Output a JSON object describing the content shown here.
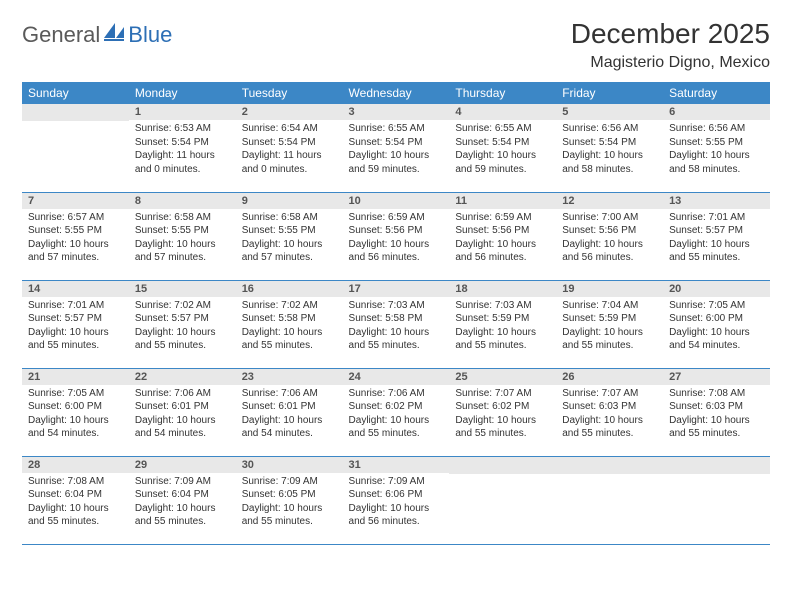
{
  "logo": {
    "part1": "General",
    "part2": "Blue"
  },
  "title": "December 2025",
  "location": "Magisterio Digno, Mexico",
  "header_bg": "#3c87c6",
  "header_fg": "#ffffff",
  "daynum_bg": "#e8e8e8",
  "row_divider": "#3c87c6",
  "weekdays": [
    "Sunday",
    "Monday",
    "Tuesday",
    "Wednesday",
    "Thursday",
    "Friday",
    "Saturday"
  ],
  "weeks": [
    [
      null,
      {
        "n": "1",
        "sr": "Sunrise: 6:53 AM",
        "ss": "Sunset: 5:54 PM",
        "d1": "Daylight: 11 hours",
        "d2": "and 0 minutes."
      },
      {
        "n": "2",
        "sr": "Sunrise: 6:54 AM",
        "ss": "Sunset: 5:54 PM",
        "d1": "Daylight: 11 hours",
        "d2": "and 0 minutes."
      },
      {
        "n": "3",
        "sr": "Sunrise: 6:55 AM",
        "ss": "Sunset: 5:54 PM",
        "d1": "Daylight: 10 hours",
        "d2": "and 59 minutes."
      },
      {
        "n": "4",
        "sr": "Sunrise: 6:55 AM",
        "ss": "Sunset: 5:54 PM",
        "d1": "Daylight: 10 hours",
        "d2": "and 59 minutes."
      },
      {
        "n": "5",
        "sr": "Sunrise: 6:56 AM",
        "ss": "Sunset: 5:54 PM",
        "d1": "Daylight: 10 hours",
        "d2": "and 58 minutes."
      },
      {
        "n": "6",
        "sr": "Sunrise: 6:56 AM",
        "ss": "Sunset: 5:55 PM",
        "d1": "Daylight: 10 hours",
        "d2": "and 58 minutes."
      }
    ],
    [
      {
        "n": "7",
        "sr": "Sunrise: 6:57 AM",
        "ss": "Sunset: 5:55 PM",
        "d1": "Daylight: 10 hours",
        "d2": "and 57 minutes."
      },
      {
        "n": "8",
        "sr": "Sunrise: 6:58 AM",
        "ss": "Sunset: 5:55 PM",
        "d1": "Daylight: 10 hours",
        "d2": "and 57 minutes."
      },
      {
        "n": "9",
        "sr": "Sunrise: 6:58 AM",
        "ss": "Sunset: 5:55 PM",
        "d1": "Daylight: 10 hours",
        "d2": "and 57 minutes."
      },
      {
        "n": "10",
        "sr": "Sunrise: 6:59 AM",
        "ss": "Sunset: 5:56 PM",
        "d1": "Daylight: 10 hours",
        "d2": "and 56 minutes."
      },
      {
        "n": "11",
        "sr": "Sunrise: 6:59 AM",
        "ss": "Sunset: 5:56 PM",
        "d1": "Daylight: 10 hours",
        "d2": "and 56 minutes."
      },
      {
        "n": "12",
        "sr": "Sunrise: 7:00 AM",
        "ss": "Sunset: 5:56 PM",
        "d1": "Daylight: 10 hours",
        "d2": "and 56 minutes."
      },
      {
        "n": "13",
        "sr": "Sunrise: 7:01 AM",
        "ss": "Sunset: 5:57 PM",
        "d1": "Daylight: 10 hours",
        "d2": "and 55 minutes."
      }
    ],
    [
      {
        "n": "14",
        "sr": "Sunrise: 7:01 AM",
        "ss": "Sunset: 5:57 PM",
        "d1": "Daylight: 10 hours",
        "d2": "and 55 minutes."
      },
      {
        "n": "15",
        "sr": "Sunrise: 7:02 AM",
        "ss": "Sunset: 5:57 PM",
        "d1": "Daylight: 10 hours",
        "d2": "and 55 minutes."
      },
      {
        "n": "16",
        "sr": "Sunrise: 7:02 AM",
        "ss": "Sunset: 5:58 PM",
        "d1": "Daylight: 10 hours",
        "d2": "and 55 minutes."
      },
      {
        "n": "17",
        "sr": "Sunrise: 7:03 AM",
        "ss": "Sunset: 5:58 PM",
        "d1": "Daylight: 10 hours",
        "d2": "and 55 minutes."
      },
      {
        "n": "18",
        "sr": "Sunrise: 7:03 AM",
        "ss": "Sunset: 5:59 PM",
        "d1": "Daylight: 10 hours",
        "d2": "and 55 minutes."
      },
      {
        "n": "19",
        "sr": "Sunrise: 7:04 AM",
        "ss": "Sunset: 5:59 PM",
        "d1": "Daylight: 10 hours",
        "d2": "and 55 minutes."
      },
      {
        "n": "20",
        "sr": "Sunrise: 7:05 AM",
        "ss": "Sunset: 6:00 PM",
        "d1": "Daylight: 10 hours",
        "d2": "and 54 minutes."
      }
    ],
    [
      {
        "n": "21",
        "sr": "Sunrise: 7:05 AM",
        "ss": "Sunset: 6:00 PM",
        "d1": "Daylight: 10 hours",
        "d2": "and 54 minutes."
      },
      {
        "n": "22",
        "sr": "Sunrise: 7:06 AM",
        "ss": "Sunset: 6:01 PM",
        "d1": "Daylight: 10 hours",
        "d2": "and 54 minutes."
      },
      {
        "n": "23",
        "sr": "Sunrise: 7:06 AM",
        "ss": "Sunset: 6:01 PM",
        "d1": "Daylight: 10 hours",
        "d2": "and 54 minutes."
      },
      {
        "n": "24",
        "sr": "Sunrise: 7:06 AM",
        "ss": "Sunset: 6:02 PM",
        "d1": "Daylight: 10 hours",
        "d2": "and 55 minutes."
      },
      {
        "n": "25",
        "sr": "Sunrise: 7:07 AM",
        "ss": "Sunset: 6:02 PM",
        "d1": "Daylight: 10 hours",
        "d2": "and 55 minutes."
      },
      {
        "n": "26",
        "sr": "Sunrise: 7:07 AM",
        "ss": "Sunset: 6:03 PM",
        "d1": "Daylight: 10 hours",
        "d2": "and 55 minutes."
      },
      {
        "n": "27",
        "sr": "Sunrise: 7:08 AM",
        "ss": "Sunset: 6:03 PM",
        "d1": "Daylight: 10 hours",
        "d2": "and 55 minutes."
      }
    ],
    [
      {
        "n": "28",
        "sr": "Sunrise: 7:08 AM",
        "ss": "Sunset: 6:04 PM",
        "d1": "Daylight: 10 hours",
        "d2": "and 55 minutes."
      },
      {
        "n": "29",
        "sr": "Sunrise: 7:09 AM",
        "ss": "Sunset: 6:04 PM",
        "d1": "Daylight: 10 hours",
        "d2": "and 55 minutes."
      },
      {
        "n": "30",
        "sr": "Sunrise: 7:09 AM",
        "ss": "Sunset: 6:05 PM",
        "d1": "Daylight: 10 hours",
        "d2": "and 55 minutes."
      },
      {
        "n": "31",
        "sr": "Sunrise: 7:09 AM",
        "ss": "Sunset: 6:06 PM",
        "d1": "Daylight: 10 hours",
        "d2": "and 56 minutes."
      },
      null,
      null,
      null
    ]
  ]
}
